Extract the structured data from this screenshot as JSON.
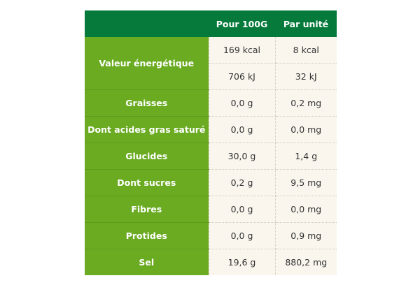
{
  "header": {
    "col1": "",
    "col2": "Pour 100G",
    "col3": "Par unité"
  },
  "energy": {
    "label": "Valeur énergétique",
    "kcal_100g": "169 kcal",
    "kcal_unit": "8 kcal",
    "kj_100g": "706 kJ",
    "kj_unit": "32 kJ"
  },
  "rows": [
    {
      "label": "Graisses",
      "per100g": "0,0 g",
      "perUnit": "0,2 mg"
    },
    {
      "label": "Dont acides gras saturé",
      "per100g": "0,0 g",
      "perUnit": "0,0 mg"
    },
    {
      "label": "Glucides",
      "per100g": "30,0 g",
      "perUnit": "1,4 g"
    },
    {
      "label": "Dont sucres",
      "per100g": "0,2 g",
      "perUnit": "9,5 mg"
    },
    {
      "label": "Fibres",
      "per100g": "0,0 g",
      "perUnit": "0,0 mg"
    },
    {
      "label": "Protides",
      "per100g": "0,0 g",
      "perUnit": "0,9 mg"
    },
    {
      "label": "Sel",
      "per100g": "19,6 g",
      "perUnit": "880,2 mg"
    }
  ],
  "colors": {
    "header": "#067a3b",
    "label": "#6aab22",
    "cell": "#faf6ee"
  }
}
